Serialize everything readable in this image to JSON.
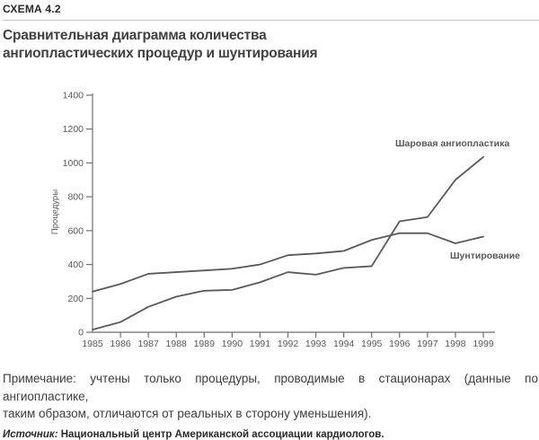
{
  "header": {
    "scheme_label": "СХЕМА 4.2",
    "title_line1": "Сравнительная диаграмма количества",
    "title_line2": "ангиопластических процедур и шунтирования"
  },
  "chart_data": {
    "type": "line",
    "x": [
      1985,
      1986,
      1987,
      1988,
      1989,
      1990,
      1991,
      1992,
      1993,
      1994,
      1995,
      1996,
      1997,
      1998,
      1999
    ],
    "xlabel": "",
    "ylabel": "Процедуры",
    "ylim": [
      0,
      1400
    ],
    "ytick_step": 200,
    "grid": false,
    "legend_position": "inline-annotations",
    "line_color": "#58595b",
    "axis_color": "#6d6e71",
    "series": [
      {
        "name": "Шаровая ангиопластика",
        "values": [
          15,
          60,
          150,
          210,
          245,
          250,
          295,
          355,
          340,
          380,
          390,
          655,
          680,
          900,
          1035
        ]
      },
      {
        "name": "Шунтирование",
        "values": [
          240,
          285,
          345,
          355,
          365,
          375,
          400,
          455,
          465,
          480,
          545,
          585,
          585,
          525,
          565
        ]
      }
    ]
  },
  "note": {
    "line1": "Примечание: учтены только процедуры, проводимые в стационарах (данные по ангиопластике,",
    "line2": "таким образом, отличаются от реальных в сторону уменьшения)."
  },
  "source": {
    "label": "Источник:",
    "text": "Национальный центр Американской ассоциации кардиологов."
  }
}
